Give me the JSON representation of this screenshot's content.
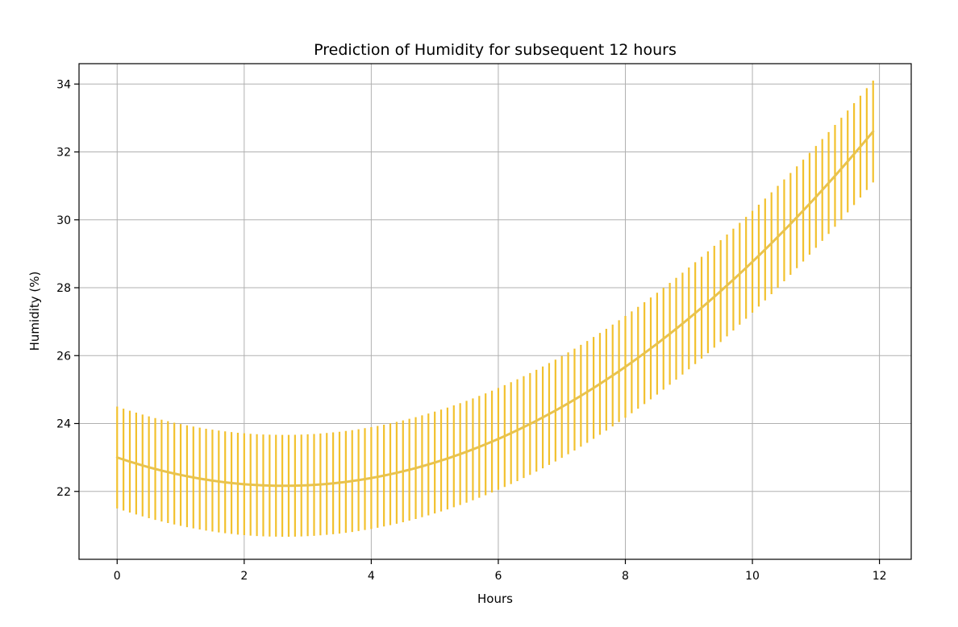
{
  "chart_data": {
    "type": "line",
    "title": "Prediction of Humidity for subsequent 12 hours",
    "xlabel": "Hours",
    "ylabel": "Humidity (%)",
    "xlim": [
      -0.6,
      12.5
    ],
    "ylim": [
      20.0,
      34.6
    ],
    "xticks": [
      0,
      2,
      4,
      6,
      8,
      10,
      12
    ],
    "yticks": [
      22,
      24,
      26,
      28,
      30,
      32,
      34
    ],
    "grid": true,
    "x_start": 0,
    "x_end": 11.9,
    "x_step": 0.1,
    "mean_curve": {
      "a": 0.1213,
      "b": -0.6366,
      "c": 23.0
    },
    "error_half_width": 1.5,
    "colors": {
      "line": "#e9c34d",
      "error_bars": "#f2c12e"
    }
  }
}
